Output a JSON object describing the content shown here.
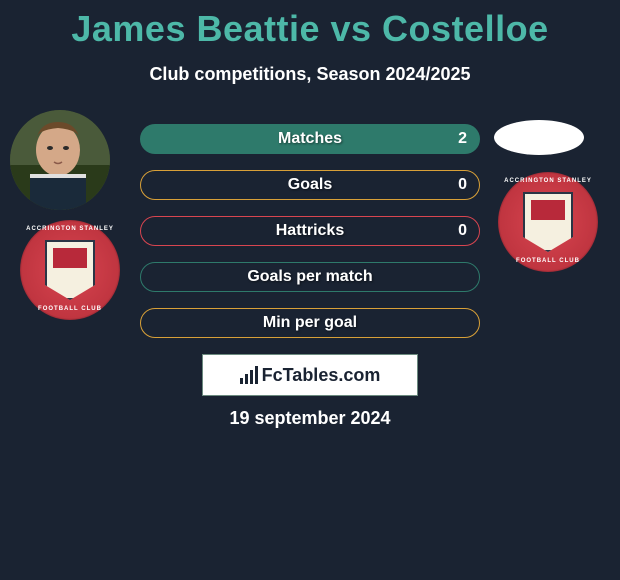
{
  "title": "James Beattie vs Costelloe",
  "subtitle": "Club competitions, Season 2024/2025",
  "stats": [
    {
      "label": "Matches",
      "value": "2",
      "border_color": "#2e7a6b",
      "fill_percent": 100,
      "fill_color": "#2e7a6b"
    },
    {
      "label": "Goals",
      "value": "0",
      "border_color": "#d8a038",
      "fill_percent": 0,
      "fill_color": "#d8a038"
    },
    {
      "label": "Hattricks",
      "value": "0",
      "border_color": "#d84550",
      "fill_percent": 0,
      "fill_color": "#d84550"
    },
    {
      "label": "Goals per match",
      "value": "",
      "border_color": "#2e7a6b",
      "fill_percent": 0,
      "fill_color": "#2e7a6b"
    },
    {
      "label": "Min per goal",
      "value": "",
      "border_color": "#d8a038",
      "fill_percent": 0,
      "fill_color": "#d8a038"
    }
  ],
  "footer_brand": "FcTables.com",
  "date": "19 september 2024",
  "club_name": "ACCRINGTON STANLEY",
  "club_type": "FOOTBALL CLUB",
  "colors": {
    "background": "#1a2332",
    "title": "#4db8a8",
    "text": "#ffffff"
  }
}
